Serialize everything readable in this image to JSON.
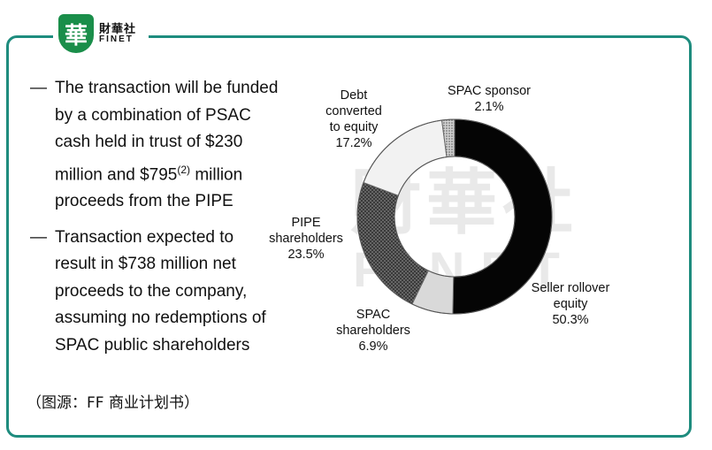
{
  "logo": {
    "mark": "華",
    "name_cn": "財華社",
    "name_en": "FINET"
  },
  "watermark": {
    "cn": "財華社",
    "en": "FINET"
  },
  "bullets": [
    {
      "dash": "—",
      "lines": [
        "The transaction will be funded",
        "by a combination of PSAC",
        "cash held in trust of $230",
        "million and $795",
        "proceeds from the PIPE"
      ],
      "superscript": "(2)",
      "after_superscript": " million"
    },
    {
      "dash": "—",
      "lines": [
        "Transaction expected to",
        "result in $738 million net",
        "proceeds to the company,",
        "assuming no redemptions of",
        "SPAC public shareholders"
      ]
    }
  ],
  "caption": "（图源：FF 商业计划书）",
  "chart_data": {
    "type": "pie",
    "donut": true,
    "title": "",
    "slices": [
      {
        "name": "Seller rollover equity",
        "label_lines": [
          "Seller rollover",
          "equity"
        ],
        "value": 50.3,
        "pct_label": "50.3%",
        "color": "#050505",
        "pattern": "solid"
      },
      {
        "name": "SPAC shareholders",
        "label_lines": [
          "SPAC",
          "shareholders"
        ],
        "value": 6.9,
        "pct_label": "6.9%",
        "color": "#d9d9d9",
        "pattern": "solid"
      },
      {
        "name": "PIPE shareholders",
        "label_lines": [
          "PIPE",
          "shareholders"
        ],
        "value": 23.5,
        "pct_label": "23.5%",
        "color": "#4a4a4a",
        "pattern": "dots"
      },
      {
        "name": "Debt converted to equity",
        "label_lines": [
          "Debt",
          "converted",
          "to equity"
        ],
        "value": 17.2,
        "pct_label": "17.2%",
        "color": "#f2f2f2",
        "pattern": "solid"
      },
      {
        "name": "SPAC sponsor",
        "label_lines": [
          "SPAC sponsor"
        ],
        "value": 2.1,
        "pct_label": "2.1%",
        "color": "#888888",
        "pattern": "dots"
      }
    ]
  }
}
